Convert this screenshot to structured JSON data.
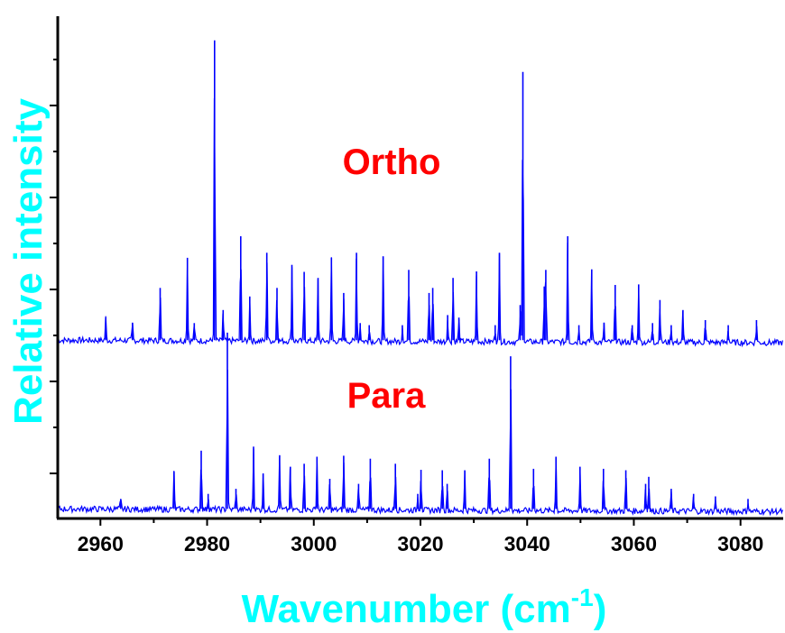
{
  "chart_data": {
    "type": "line",
    "xlabel": "Wavenumber (cm",
    "xlabel_sup": "-1",
    "xlabel_close": ")",
    "ylabel": "Relative intensity",
    "xlim": [
      2952,
      3088
    ],
    "ylim": [
      0,
      1
    ],
    "x_ticks": [
      2960,
      2980,
      3000,
      3020,
      3040,
      3060,
      3080
    ],
    "x_tick_labels": [
      "2960",
      "2980",
      "3000",
      "3020",
      "3040",
      "3060",
      "3080"
    ],
    "label_color": "#00ffff",
    "annotation_color": "#ff0000",
    "line_color": "#0000ff",
    "series": [
      {
        "name": "Ortho",
        "baseline": 0.355,
        "peaks": [
          {
            "x": 2961.0,
            "h": 0.045
          },
          {
            "x": 2966.0,
            "h": 0.035
          },
          {
            "x": 2971.2,
            "h": 0.104
          },
          {
            "x": 2976.3,
            "h": 0.164
          },
          {
            "x": 2977.6,
            "h": 0.034
          },
          {
            "x": 2981.4,
            "h": 0.597
          },
          {
            "x": 2983.0,
            "h": 0.06
          },
          {
            "x": 2986.3,
            "h": 0.207
          },
          {
            "x": 2988.0,
            "h": 0.087
          },
          {
            "x": 2991.2,
            "h": 0.174
          },
          {
            "x": 2993.1,
            "h": 0.104
          },
          {
            "x": 2995.9,
            "h": 0.15
          },
          {
            "x": 2998.2,
            "h": 0.136
          },
          {
            "x": 3000.8,
            "h": 0.124
          },
          {
            "x": 3003.3,
            "h": 0.164
          },
          {
            "x": 3005.6,
            "h": 0.094
          },
          {
            "x": 3008.0,
            "h": 0.174
          },
          {
            "x": 3008.7,
            "h": 0.034
          },
          {
            "x": 3010.4,
            "h": 0.03
          },
          {
            "x": 3013.0,
            "h": 0.167
          },
          {
            "x": 3016.6,
            "h": 0.03
          },
          {
            "x": 3017.8,
            "h": 0.14
          },
          {
            "x": 3021.6,
            "h": 0.094
          },
          {
            "x": 3022.3,
            "h": 0.104
          },
          {
            "x": 3025.1,
            "h": 0.05
          },
          {
            "x": 3026.1,
            "h": 0.124
          },
          {
            "x": 3027.2,
            "h": 0.045
          },
          {
            "x": 3030.5,
            "h": 0.137
          },
          {
            "x": 3034.0,
            "h": 0.03
          },
          {
            "x": 3034.8,
            "h": 0.174
          },
          {
            "x": 3038.7,
            "h": 0.07
          },
          {
            "x": 3039.2,
            "h": 0.534
          },
          {
            "x": 3043.2,
            "h": 0.107
          },
          {
            "x": 3043.5,
            "h": 0.14
          },
          {
            "x": 3047.6,
            "h": 0.207
          },
          {
            "x": 3049.7,
            "h": 0.03
          },
          {
            "x": 3052.1,
            "h": 0.141
          },
          {
            "x": 3054.4,
            "h": 0.035
          },
          {
            "x": 3056.5,
            "h": 0.11
          },
          {
            "x": 3059.7,
            "h": 0.03
          },
          {
            "x": 3060.9,
            "h": 0.111
          },
          {
            "x": 3063.5,
            "h": 0.034
          },
          {
            "x": 3064.9,
            "h": 0.08
          },
          {
            "x": 3067.0,
            "h": 0.03
          },
          {
            "x": 3069.2,
            "h": 0.06
          },
          {
            "x": 3073.4,
            "h": 0.04
          },
          {
            "x": 3077.7,
            "h": 0.03
          },
          {
            "x": 3083.0,
            "h": 0.04
          }
        ]
      },
      {
        "name": "Para",
        "baseline": 0.019,
        "peaks": [
          {
            "x": 2963.8,
            "h": 0.02
          },
          {
            "x": 2973.8,
            "h": 0.074
          },
          {
            "x": 2978.9,
            "h": 0.116
          },
          {
            "x": 2980.2,
            "h": 0.03
          },
          {
            "x": 2983.8,
            "h": 0.351
          },
          {
            "x": 2985.4,
            "h": 0.04
          },
          {
            "x": 2988.7,
            "h": 0.124
          },
          {
            "x": 2990.5,
            "h": 0.07
          },
          {
            "x": 2993.6,
            "h": 0.107
          },
          {
            "x": 2995.6,
            "h": 0.084
          },
          {
            "x": 2998.2,
            "h": 0.09
          },
          {
            "x": 3000.6,
            "h": 0.104
          },
          {
            "x": 3003.0,
            "h": 0.06
          },
          {
            "x": 3005.6,
            "h": 0.106
          },
          {
            "x": 3008.4,
            "h": 0.05
          },
          {
            "x": 3010.6,
            "h": 0.1
          },
          {
            "x": 3015.3,
            "h": 0.09
          },
          {
            "x": 3019.5,
            "h": 0.03
          },
          {
            "x": 3020.1,
            "h": 0.078
          },
          {
            "x": 3024.1,
            "h": 0.077
          },
          {
            "x": 3025.0,
            "h": 0.05
          },
          {
            "x": 3028.3,
            "h": 0.077
          },
          {
            "x": 3032.9,
            "h": 0.1
          },
          {
            "x": 3036.9,
            "h": 0.304
          },
          {
            "x": 3041.2,
            "h": 0.08
          },
          {
            "x": 3045.4,
            "h": 0.104
          },
          {
            "x": 3049.9,
            "h": 0.084
          },
          {
            "x": 3054.3,
            "h": 0.08
          },
          {
            "x": 3058.5,
            "h": 0.077
          },
          {
            "x": 3062.2,
            "h": 0.05
          },
          {
            "x": 3062.8,
            "h": 0.064
          },
          {
            "x": 3067.0,
            "h": 0.04
          },
          {
            "x": 3071.2,
            "h": 0.03
          },
          {
            "x": 3075.3,
            "h": 0.025
          },
          {
            "x": 3081.4,
            "h": 0.02
          }
        ]
      }
    ],
    "annotations": [
      {
        "text": "Ortho",
        "series": "Ortho"
      },
      {
        "text": "Para",
        "series": "Para"
      }
    ]
  }
}
